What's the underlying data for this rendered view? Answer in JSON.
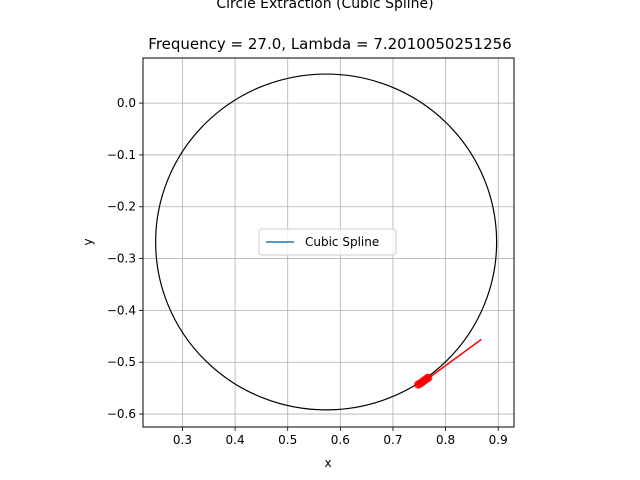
{
  "chart_data": {
    "type": "line",
    "suptitle": "Circle Extraction (Cubic Spline)",
    "title": "Frequency = 27.0, Lambda = 7.2010050251256",
    "xlabel": "x",
    "ylabel": "y",
    "xlim": [
      0.225,
      0.93
    ],
    "ylim": [
      -0.625,
      0.087
    ],
    "xticks": [
      0.3,
      0.4,
      0.5,
      0.6,
      0.7,
      0.8,
      0.9
    ],
    "xtick_labels": [
      "0.3",
      "0.4",
      "0.5",
      "0.6",
      "0.7",
      "0.8",
      "0.9"
    ],
    "yticks": [
      0.0,
      -0.1,
      -0.2,
      -0.3,
      -0.4,
      -0.5,
      -0.6
    ],
    "ytick_labels": [
      "0.0",
      "−0.1",
      "−0.2",
      "−0.3",
      "−0.4",
      "−0.5",
      "−0.6"
    ],
    "grid": true,
    "aspect": "equal",
    "legend": {
      "position": "center",
      "entries": [
        {
          "name": "Cubic Spline",
          "color": "#1f77b4"
        }
      ]
    },
    "series": [
      {
        "name": "Cubic Spline",
        "color": "#1f77b4",
        "x": [],
        "y": []
      }
    ],
    "circle": {
      "center": [
        0.573,
        -0.268
      ],
      "radius": 0.324,
      "color": "#000000"
    },
    "center_marker": {
      "x": 0.573,
      "y": -0.268,
      "color": "#ff7f0e"
    },
    "red_line": {
      "x": [
        0.755,
        0.868
      ],
      "y": [
        -0.54,
        -0.456
      ],
      "color": "#ff0000"
    },
    "red_points": {
      "color": "#ff0000",
      "x": [
        0.748,
        0.752,
        0.756,
        0.76,
        0.764,
        0.767
      ],
      "y": [
        -0.543,
        -0.541,
        -0.538,
        -0.535,
        -0.532,
        -0.53
      ]
    }
  }
}
